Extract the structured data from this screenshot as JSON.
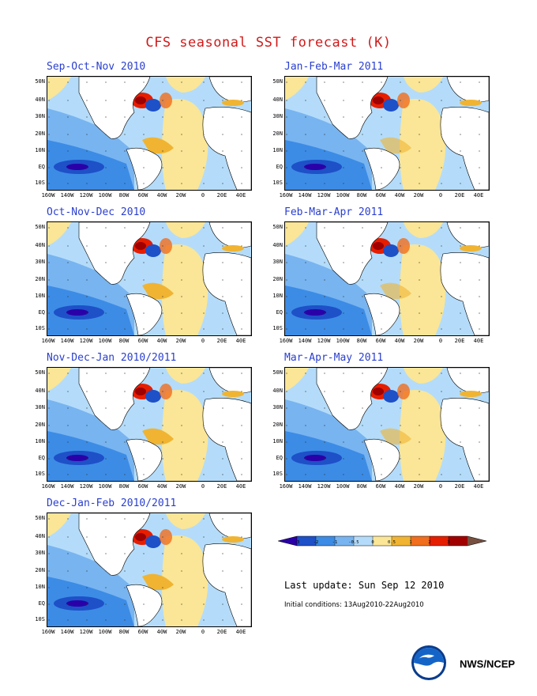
{
  "title": "CFS seasonal SST forecast (K)",
  "lat_labels": [
    "50N",
    "40N",
    "30N",
    "20N",
    "10N",
    "EQ",
    "10S"
  ],
  "lon_labels": [
    "160W",
    "140W",
    "120W",
    "100W",
    "80W",
    "60W",
    "40W",
    "20W",
    "0",
    "20E",
    "40E"
  ],
  "panels": [
    {
      "title": "Sep-Oct-Nov 2010"
    },
    {
      "title": "Jan-Feb-Mar 2011"
    },
    {
      "title": "Oct-Nov-Dec 2010"
    },
    {
      "title": "Feb-Mar-Apr 2011"
    },
    {
      "title": "Nov-Dec-Jan 2010/2011"
    },
    {
      "title": "Mar-Apr-May 2011"
    },
    {
      "title": "Dec-Jan-Feb 2010/2011"
    }
  ],
  "legend": {
    "labels": [
      "-3",
      "-2",
      "-1",
      "-0.5",
      "0",
      "0.5",
      "1",
      "2",
      "3"
    ],
    "colors": [
      "#2a00a8",
      "#1e50c8",
      "#3c8ce6",
      "#78b4f0",
      "#b4dcfa",
      "#fae696",
      "#f0b432",
      "#f06e1e",
      "#e61e00",
      "#a00000",
      "#785040"
    ]
  },
  "info": {
    "last_update": "Last update: Sun Sep 12 2010",
    "initial_conditions": "Initial conditions: 13Aug2010-22Aug2010"
  },
  "credit": "NWS/NCEP"
}
